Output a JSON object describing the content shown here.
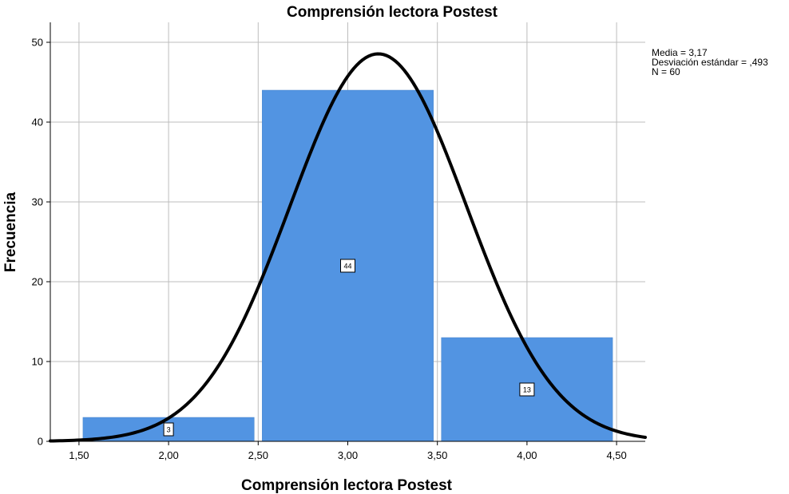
{
  "chart_data": {
    "type": "bar",
    "title": "Comprensión lectora Postest",
    "xlabel": "Comprensión lectora Postest",
    "ylabel": "Frecuencia",
    "bins": [
      {
        "from": 1.5,
        "to": 2.5,
        "value": 3,
        "label": "3"
      },
      {
        "from": 2.5,
        "to": 3.5,
        "value": 44,
        "label": "44"
      },
      {
        "from": 3.5,
        "to": 4.5,
        "value": 13,
        "label": "13"
      }
    ],
    "xlim": [
      1.34,
      4.66
    ],
    "ylim": [
      0,
      52.5
    ],
    "x_ticks": [
      {
        "value": 1.5,
        "label": "1,50"
      },
      {
        "value": 2.0,
        "label": "2,00"
      },
      {
        "value": 2.5,
        "label": "2,50"
      },
      {
        "value": 3.0,
        "label": "3,00"
      },
      {
        "value": 3.5,
        "label": "3,50"
      },
      {
        "value": 4.0,
        "label": "4,00"
      },
      {
        "value": 4.5,
        "label": "4,50"
      }
    ],
    "y_ticks": [
      {
        "value": 0,
        "label": "0"
      },
      {
        "value": 10,
        "label": "10"
      },
      {
        "value": 20,
        "label": "20"
      },
      {
        "value": 30,
        "label": "30"
      },
      {
        "value": 40,
        "label": "40"
      },
      {
        "value": 50,
        "label": "50"
      }
    ],
    "grid": true,
    "bar_color": "#5294e2",
    "curve_color": "#000000",
    "normal_curve": {
      "mean": 3.17,
      "sd": 0.493,
      "n": 60,
      "bin_width": 1.0
    },
    "stats_lines": [
      "Media = 3,17",
      "Desviación estándar = ,493",
      "N = 60"
    ]
  }
}
